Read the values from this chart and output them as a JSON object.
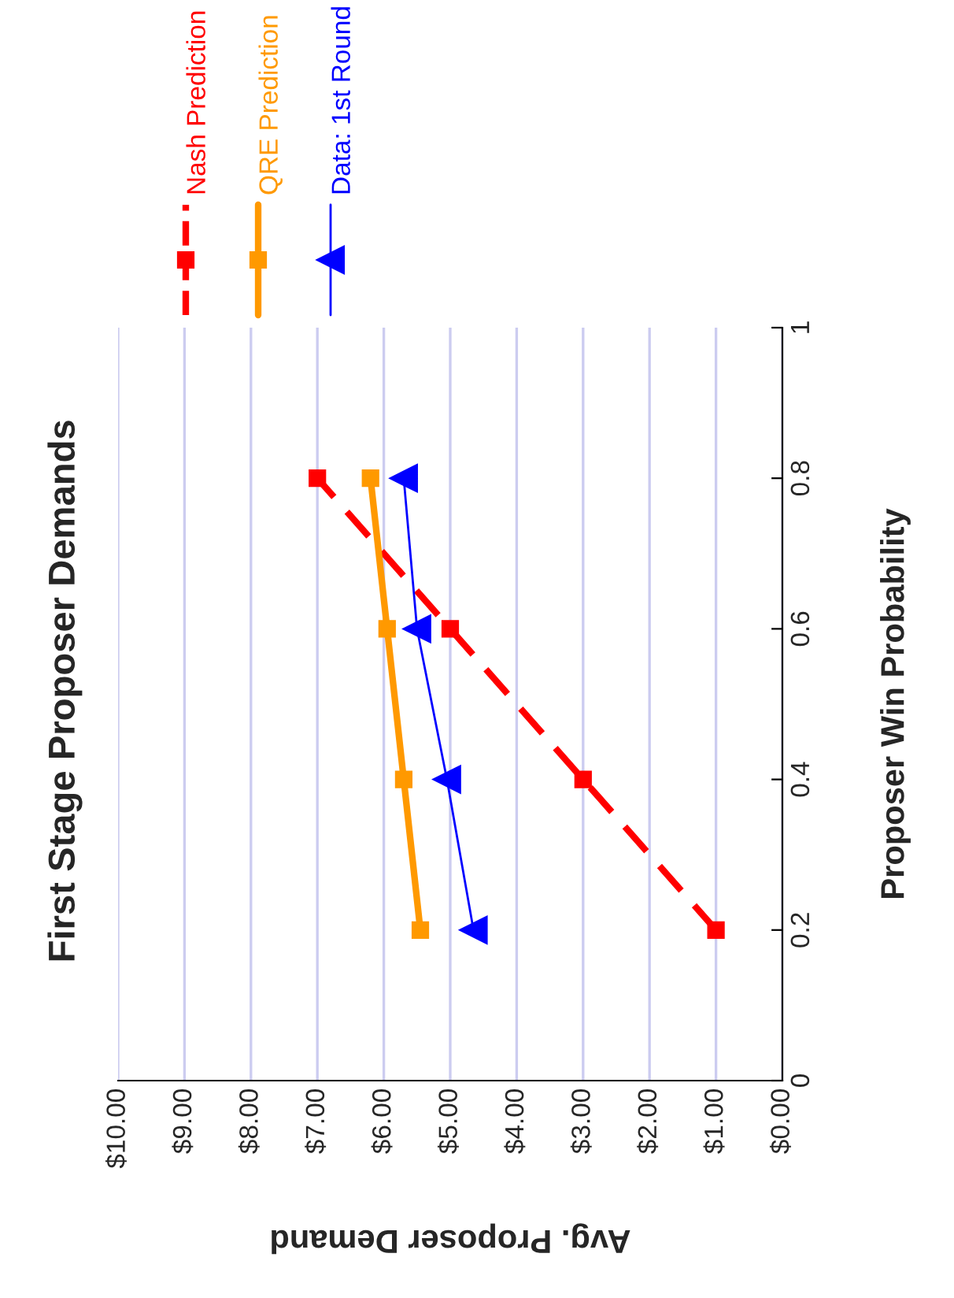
{
  "chart_data": {
    "type": "line",
    "title": "First Stage Proposer Demands",
    "xlabel": "Avg. Proposer Demand",
    "ylabel": "Proposer Win Probability",
    "series": [
      {
        "name": "Nash Prediction",
        "color": "#ff0000",
        "x": [
          1,
          3,
          5,
          7
        ],
        "values": [
          0.2,
          0.4,
          0.6,
          0.8
        ],
        "marker": "square",
        "line_style": "dashed"
      },
      {
        "name": "QRE Prediction",
        "color": "#ff9900",
        "x": [
          5.45,
          5.7,
          5.95,
          6.2
        ],
        "values": [
          0.2,
          0.4,
          0.6,
          0.8
        ],
        "marker": "square",
        "line_style": "solid"
      },
      {
        "name": "Data: 1st Round",
        "color": "#0000ff",
        "x": [
          4.65,
          5.05,
          5.5,
          5.7
        ],
        "values": [
          0.2,
          0.4,
          0.6,
          0.8
        ],
        "marker": "triangle",
        "line_style": "solid"
      }
    ],
    "ylim": [
      0,
      1
    ],
    "yticks": [
      0,
      0.2,
      0.4,
      0.6,
      0.8,
      1
    ],
    "xlim": [
      10,
      0
    ],
    "xticks": [
      {
        "value": 0,
        "label": "$0.00"
      },
      {
        "value": 1,
        "label": "$1.00"
      },
      {
        "value": 2,
        "label": "$2.00"
      },
      {
        "value": 3,
        "label": "$3.00"
      },
      {
        "value": 4,
        "label": "$4.00"
      },
      {
        "value": 5,
        "label": "$5.00"
      },
      {
        "value": 6,
        "label": "$6.00"
      },
      {
        "value": 7,
        "label": "$7.00"
      },
      {
        "value": 8,
        "label": "$8.00"
      },
      {
        "value": 9,
        "label": "$9.00"
      },
      {
        "value": 10,
        "label": "$10.00"
      }
    ],
    "grid": "x",
    "legend": "top"
  }
}
